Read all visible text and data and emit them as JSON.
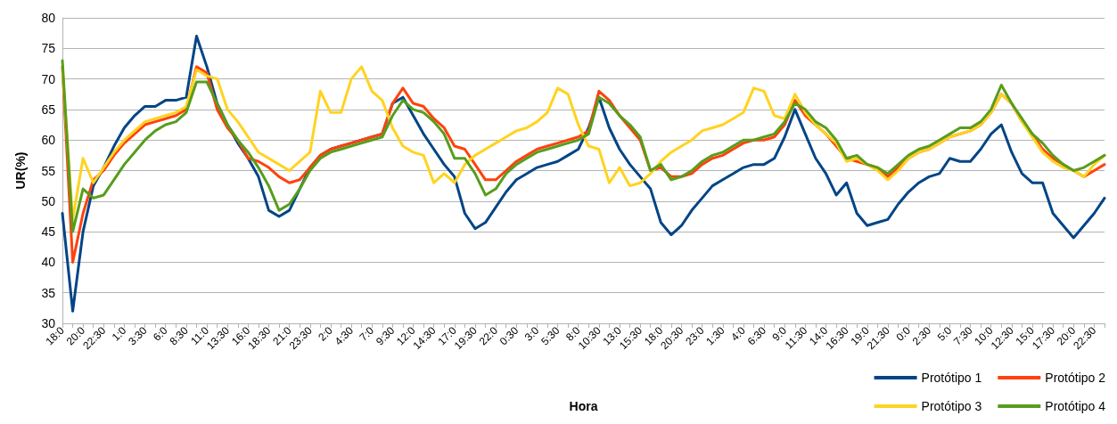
{
  "chart_data": {
    "type": "line",
    "xlabel": "Hora",
    "ylabel": "UR(%)",
    "categories": [
      "18:0",
      null,
      "20:0",
      null,
      "22:30",
      null,
      "1:0",
      null,
      "3:30",
      null,
      "6:0",
      null,
      "8:30",
      null,
      "11:0",
      null,
      "13:30",
      null,
      "16:0",
      null,
      "18:30",
      null,
      "21:0",
      null,
      "23:30",
      null,
      "2:0",
      null,
      "4:30",
      null,
      "7:0",
      null,
      "9:30",
      null,
      "12:0",
      null,
      "14:30",
      null,
      "17:0",
      null,
      "19:30",
      null,
      "22:0",
      null,
      "0:30",
      null,
      "3:0",
      null,
      "5:30",
      null,
      "8:0",
      null,
      "10:30",
      null,
      "13:0",
      null,
      "15:30",
      null,
      "18:0",
      null,
      "20:30",
      null,
      "23:0",
      null,
      "1:30",
      null,
      "4:0",
      null,
      "6:30",
      null,
      "9:0",
      null,
      "11:30",
      null,
      "14:0",
      null,
      "16:30",
      null,
      "19:0",
      null,
      "21:30",
      null,
      "0:0",
      null,
      "2:30",
      null,
      "5:0",
      null,
      "7:30",
      null,
      "10:0",
      null,
      "12:30",
      null,
      "15:0",
      null,
      "17:30",
      null,
      "20:0",
      null,
      "22:30",
      null
    ],
    "series": [
      {
        "name": "Protótipo 1",
        "color": "#004586",
        "values": [
          48,
          32,
          45,
          52.5,
          55.5,
          59,
          62,
          64,
          65.5,
          65.5,
          66.5,
          66.5,
          67,
          77,
          72,
          66,
          62.5,
          59.5,
          57,
          54,
          48.5,
          47.5,
          48.5,
          52,
          55.5,
          57.5,
          58.5,
          59,
          59.5,
          60,
          60.5,
          61,
          66,
          67,
          64,
          61,
          58.5,
          56,
          54,
          48,
          45.5,
          46.5,
          49,
          51.5,
          53.5,
          54.5,
          55.5,
          56,
          56.5,
          57.5,
          58.5,
          62,
          67,
          62,
          58.5,
          56,
          54,
          52,
          46.5,
          44.5,
          46,
          48.5,
          50.5,
          52.5,
          53.5,
          54.5,
          55.5,
          56,
          56,
          57,
          60.5,
          65,
          61,
          57,
          54.5,
          51,
          53,
          48,
          46,
          46.5,
          47,
          49.5,
          51.5,
          53,
          54,
          54.5,
          57,
          56.5,
          56.5,
          58.5,
          61,
          62.5,
          58,
          54.5,
          53,
          53,
          48,
          46,
          44,
          46,
          48,
          50.5
        ]
      },
      {
        "name": "Protótipo 2",
        "color": "#ff420e",
        "values": [
          72,
          40,
          48,
          53.5,
          55,
          57.5,
          59.5,
          61,
          62.5,
          63,
          63.5,
          64,
          65,
          72,
          71,
          65,
          62,
          60,
          57,
          56.5,
          55.5,
          54,
          53,
          53.5,
          55.5,
          57.5,
          58.5,
          59,
          59.5,
          60,
          60.5,
          61,
          66,
          68.5,
          66,
          65.5,
          63.5,
          62,
          59,
          58.5,
          56,
          53.5,
          53.5,
          55,
          56.5,
          57.5,
          58.5,
          59,
          59.5,
          60,
          60.5,
          61.5,
          68,
          66.5,
          64,
          62,
          60,
          55,
          55.5,
          54,
          54,
          54.5,
          56,
          57,
          57.5,
          58.5,
          59.5,
          60,
          60,
          60.5,
          62.5,
          66.5,
          64,
          62.5,
          61,
          59,
          57,
          56.5,
          56,
          55.5,
          54,
          55.5,
          57,
          58,
          58.5,
          59.5,
          60.5,
          61,
          61.5,
          62.5,
          64.5,
          67.5,
          66,
          63,
          61,
          58.5,
          57,
          56,
          55,
          54,
          55,
          56
        ]
      },
      {
        "name": "Protótipo 3",
        "color": "#ffd320",
        "values": [
          72,
          47,
          57,
          53,
          55.5,
          58,
          60,
          61.5,
          63,
          63.5,
          64,
          64.5,
          65.5,
          71.5,
          70.5,
          70,
          65,
          63,
          60.5,
          58,
          57,
          56,
          55,
          56.5,
          58,
          68,
          64.5,
          64.5,
          70,
          72,
          68,
          66.5,
          62,
          59,
          58,
          57.5,
          53,
          54.5,
          53,
          56,
          57.5,
          58.5,
          59.5,
          60.5,
          61.5,
          62,
          63,
          64.5,
          68.5,
          67.5,
          62.5,
          59,
          58.5,
          53,
          55.5,
          52.5,
          53,
          54.5,
          56.5,
          58,
          59,
          60,
          61.5,
          62,
          62.5,
          63.5,
          64.5,
          68.5,
          68,
          64,
          63.5,
          67.5,
          64.5,
          62.5,
          61,
          59.5,
          56.5,
          57,
          56,
          55,
          53.5,
          55,
          57,
          58,
          58.5,
          59.5,
          60.5,
          61,
          61.5,
          62.5,
          64.5,
          67.5,
          66,
          63,
          60.5,
          58,
          56.5,
          55.5,
          55,
          54,
          56,
          57.5
        ]
      },
      {
        "name": "Protótipo 4",
        "color": "#579d1c",
        "values": [
          73,
          45,
          52,
          50.5,
          51,
          53.5,
          56,
          58,
          60,
          61.5,
          62.5,
          63,
          64.5,
          69.5,
          69.5,
          66,
          62.5,
          60,
          58,
          55.5,
          52.5,
          48.5,
          49.5,
          52,
          55,
          57,
          58,
          58.5,
          59,
          59.5,
          60,
          60.5,
          64,
          66.5,
          65,
          64.5,
          63,
          61,
          57,
          57,
          54.5,
          51,
          52,
          54.5,
          56,
          57,
          58,
          58.5,
          59,
          59.5,
          60,
          61,
          67,
          66,
          64,
          62.5,
          60.5,
          55,
          56,
          53.5,
          54,
          55,
          56.5,
          57.5,
          58,
          59,
          60,
          60,
          60.5,
          61,
          63,
          66,
          65,
          63,
          62,
          60,
          57,
          57.5,
          56,
          55.5,
          54.5,
          56,
          57.5,
          58.5,
          59,
          60,
          61,
          62,
          62,
          63,
          65,
          69,
          66,
          63.5,
          61,
          59.5,
          57.5,
          56,
          55,
          55.5,
          56.5,
          57.5
        ]
      }
    ],
    "ylim": [
      30,
      80
    ],
    "yticks": [
      30,
      35,
      40,
      45,
      50,
      55,
      60,
      65,
      70,
      75,
      80
    ],
    "grid": "y",
    "legend": "bottom right",
    "marker": "none",
    "line_style": "solid"
  }
}
